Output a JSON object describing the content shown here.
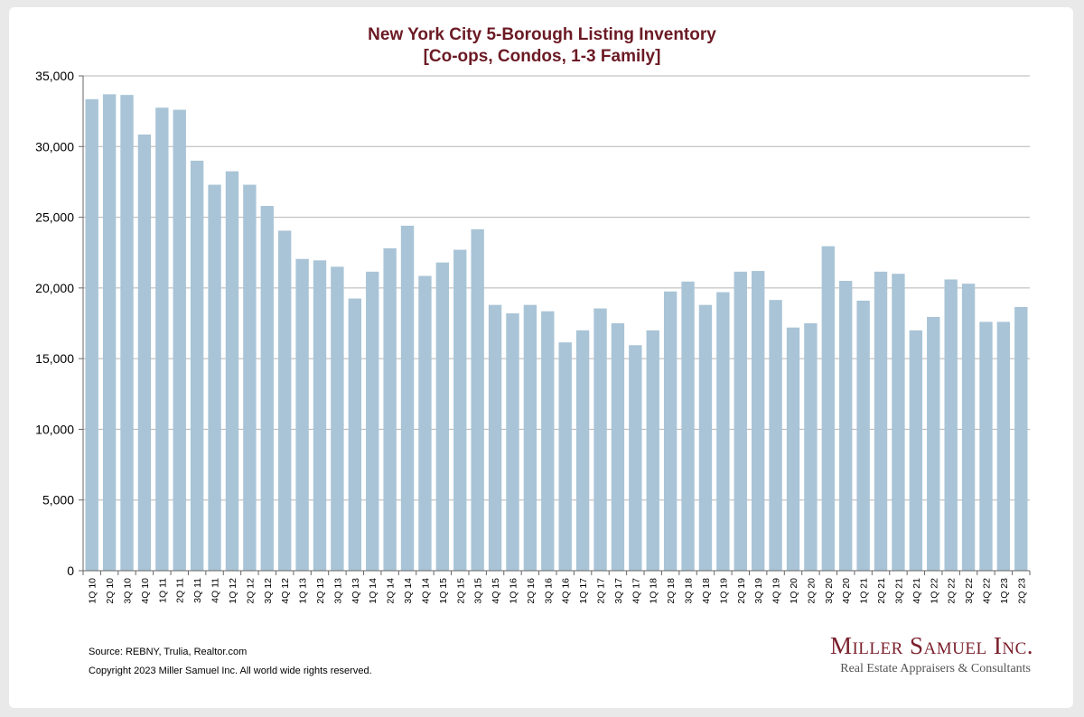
{
  "chart_data": {
    "type": "bar",
    "title": "New York City 5-Borough Listing Inventory",
    "subtitle": "[Co-ops, Condos, 1-3 Family]",
    "xlabel": "",
    "ylabel": "",
    "ylim": [
      0,
      35000
    ],
    "ytick_values": [
      0,
      5000,
      10000,
      15000,
      20000,
      25000,
      30000,
      35000
    ],
    "ytick_labels": [
      "0",
      "5,000",
      "10,000",
      "15,000",
      "20,000",
      "25,000",
      "30,000",
      "35,000"
    ],
    "grid": true,
    "categories": [
      "1Q 10",
      "2Q 10",
      "3Q 10",
      "4Q 10",
      "1Q 11",
      "2Q 11",
      "3Q 11",
      "4Q 11",
      "1Q 12",
      "2Q 12",
      "3Q 12",
      "4Q 12",
      "1Q 13",
      "2Q 13",
      "3Q 13",
      "4Q 13",
      "1Q 14",
      "2Q 14",
      "3Q 14",
      "4Q 14",
      "1Q 15",
      "2Q 15",
      "3Q 15",
      "4Q 15",
      "1Q 16",
      "2Q 16",
      "3Q 16",
      "4Q 16",
      "1Q 17",
      "2Q 17",
      "3Q 17",
      "4Q 17",
      "1Q 18",
      "2Q 18",
      "3Q 18",
      "4Q 18",
      "1Q 19",
      "2Q 19",
      "3Q 19",
      "4Q 19",
      "1Q 20",
      "2Q 20",
      "3Q 20",
      "4Q 20",
      "1Q 21",
      "2Q 21",
      "3Q 21",
      "4Q 21",
      "1Q 22",
      "2Q 22",
      "3Q 22",
      "4Q 22",
      "1Q 23",
      "2Q 23"
    ],
    "values": [
      33350,
      33700,
      33650,
      30850,
      32750,
      32600,
      29000,
      27300,
      28250,
      27300,
      25800,
      24050,
      22050,
      21950,
      21500,
      19250,
      21150,
      22800,
      24400,
      20850,
      21800,
      22700,
      24150,
      18800,
      18200,
      18800,
      18350,
      16150,
      17000,
      18550,
      17500,
      15950,
      17000,
      19750,
      20450,
      18800,
      19700,
      21150,
      21200,
      19150,
      17200,
      17500,
      22950,
      20500,
      19100,
      21150,
      21000,
      17000,
      17950,
      20600,
      20300,
      17600,
      17600,
      18650
    ],
    "bar_color": "#a9c4d6",
    "grid_color": "#b5b5b5",
    "title_color": "#6b1a24"
  },
  "footer": {
    "source": "Source: REBNY, Trulia, Realtor.com",
    "copyright": "Copyright 2023 Miller Samuel Inc.  All world wide rights reserved."
  },
  "logo": {
    "name": "Miller Samuel Inc.",
    "tagline": "Real Estate Appraisers & Consultants"
  }
}
